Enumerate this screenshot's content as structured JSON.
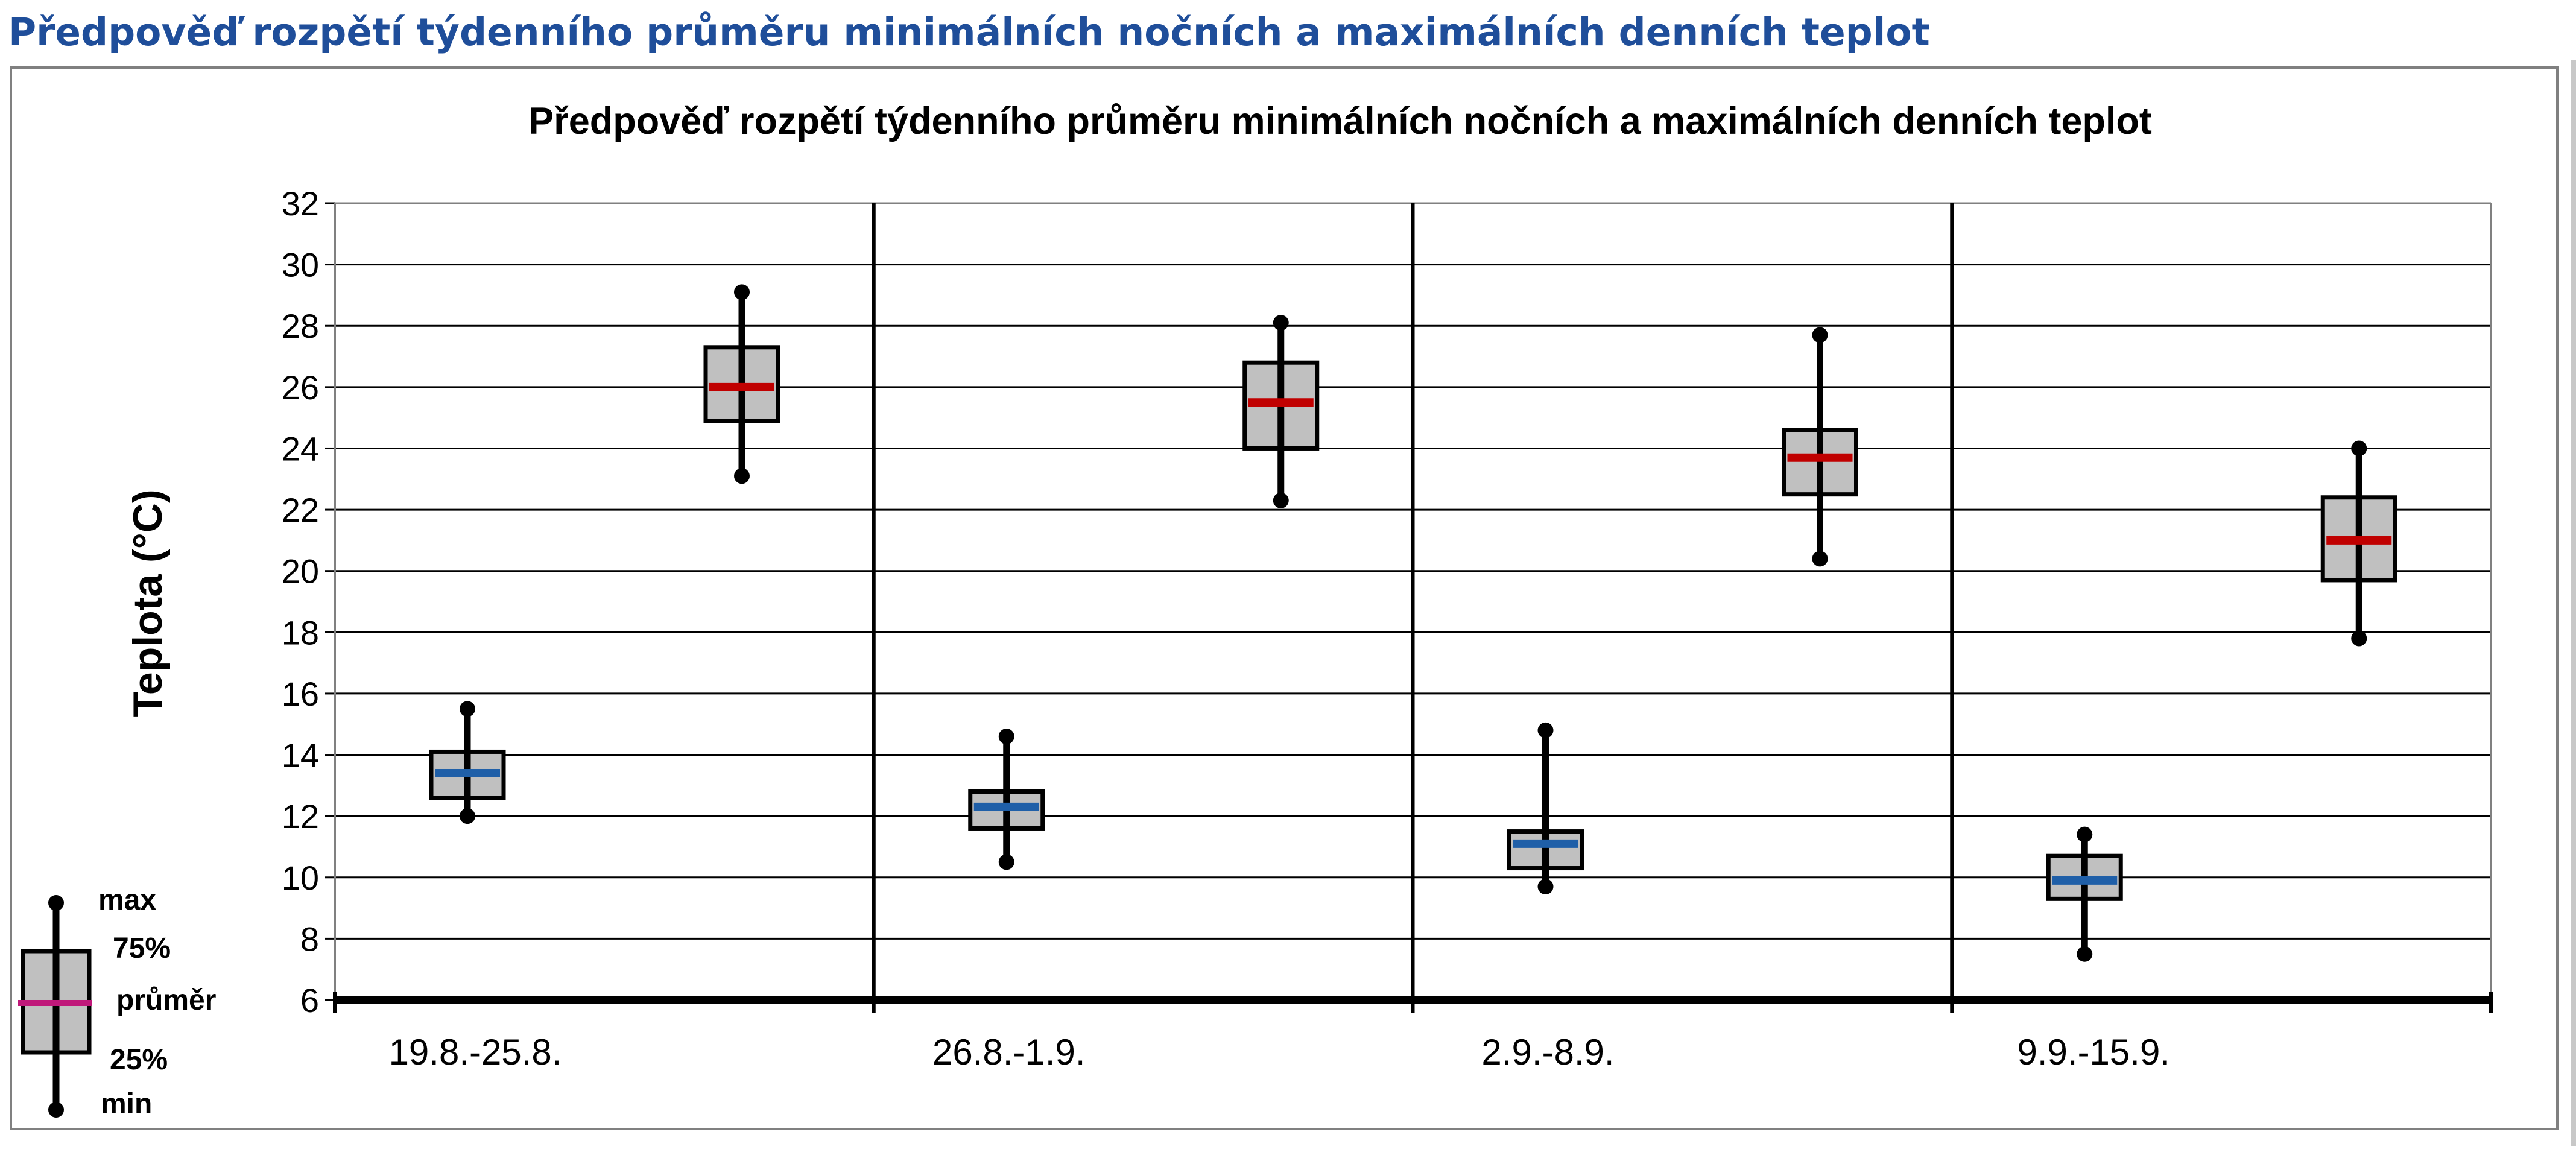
{
  "page": {
    "heading": "Předpověď rozpětí týdenního průměru minimálních nočních a maximálních denních teplot"
  },
  "colors": {
    "heading": "#1f4e9a",
    "box_fill": "#c0c0c0",
    "min_series_mean": "#1f5fa8",
    "max_series_mean": "#c00000",
    "legend_mean": "#c0187a"
  },
  "chart_data": {
    "type": "boxplot",
    "title": "Předpověď rozpětí týdenního průměru minimálních nočních a maximálních denních teplot",
    "ylabel": "Teplota (°C)",
    "xlabel": "",
    "ylim": [
      6,
      32
    ],
    "yticks": [
      6,
      8,
      10,
      12,
      14,
      16,
      18,
      20,
      22,
      24,
      26,
      28,
      30,
      32
    ],
    "grid": true,
    "categories": [
      "19.8.-25.8.",
      "26.8.-1.9.",
      "2.9.-8.9.",
      "9.9.-15.9."
    ],
    "series": [
      {
        "kind": "min_night",
        "mean_color": "#1f5fa8",
        "boxes": [
          {
            "min": 12.0,
            "q1": 12.6,
            "mean": 13.4,
            "q3": 14.1,
            "max": 15.5
          },
          {
            "min": 10.5,
            "q1": 11.6,
            "mean": 12.3,
            "q3": 12.8,
            "max": 14.6
          },
          {
            "min": 9.7,
            "q1": 10.3,
            "mean": 11.1,
            "q3": 11.5,
            "max": 14.8
          },
          {
            "min": 7.5,
            "q1": 9.3,
            "mean": 9.9,
            "q3": 10.7,
            "max": 11.4
          }
        ]
      },
      {
        "kind": "max_day",
        "mean_color": "#c00000",
        "boxes": [
          {
            "min": 23.1,
            "q1": 24.9,
            "mean": 26.0,
            "q3": 27.3,
            "max": 29.1
          },
          {
            "min": 22.3,
            "q1": 24.0,
            "mean": 25.5,
            "q3": 26.8,
            "max": 28.1
          },
          {
            "min": 20.4,
            "q1": 22.5,
            "mean": 23.7,
            "q3": 24.6,
            "max": 27.7
          },
          {
            "min": 17.8,
            "q1": 19.7,
            "mean": 21.0,
            "q3": 22.4,
            "max": 24.0
          }
        ]
      }
    ],
    "legend": {
      "placement": "bottom-left",
      "labels": {
        "max": "max",
        "q3": "75%",
        "mean": "průměr",
        "q1": "25%",
        "min": "min"
      }
    }
  }
}
